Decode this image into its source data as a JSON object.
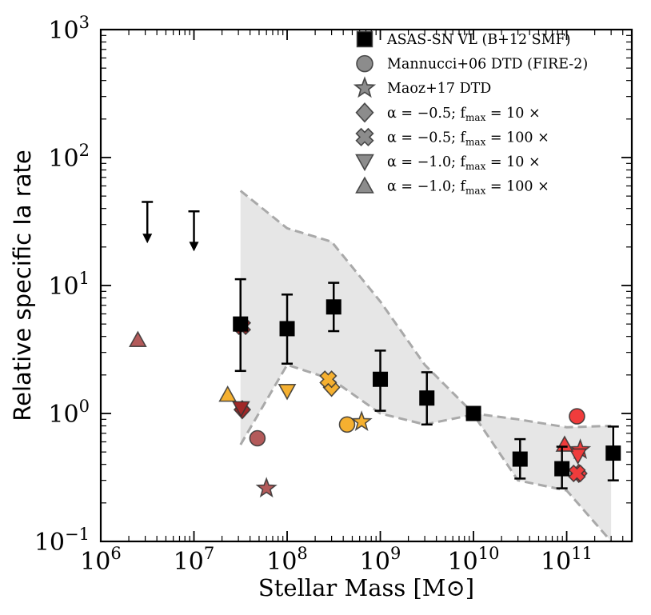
{
  "chart_data": {
    "type": "scatter",
    "title": "",
    "xlabel": "Stellar Mass [M⊙]",
    "ylabel": "Relative specific Ia rate",
    "xscale": "log",
    "yscale": "log",
    "xlim": [
      1000000,
      500000000000
    ],
    "ylim": [
      0.1,
      1000
    ],
    "xticks": [
      {
        "value": 1000000,
        "base": "10",
        "exp": "6"
      },
      {
        "value": 10000000,
        "base": "10",
        "exp": "7"
      },
      {
        "value": 100000000,
        "base": "10",
        "exp": "8"
      },
      {
        "value": 1000000000,
        "base": "10",
        "exp": "9"
      },
      {
        "value": 10000000000,
        "base": "10",
        "exp": "10"
      },
      {
        "value": 100000000000,
        "base": "10",
        "exp": "11"
      }
    ],
    "yticks": [
      {
        "value": 0.1,
        "base": "10",
        "exp": "−1"
      },
      {
        "value": 1,
        "base": "10",
        "exp": "0"
      },
      {
        "value": 10,
        "base": "10",
        "exp": "1"
      },
      {
        "value": 100,
        "base": "10",
        "exp": "2"
      },
      {
        "value": 1000,
        "base": "10",
        "exp": "3"
      }
    ],
    "colors": {
      "asassn": "#000000",
      "band_fill": "#e6e6e6",
      "band_edge": "#a9a9a9",
      "low": "#b35a5a",
      "low_dark": "#a02828",
      "mid": "#f5b030",
      "high": "#f03c3c",
      "legend": "#8c8c8c"
    },
    "legend": {
      "location": "top-right",
      "entries": [
        {
          "marker": "square",
          "label": "ASAS-SN VL (B+12 SMF)"
        },
        {
          "marker": "circle",
          "label": "Mannucci+06 DTD (FIRE-2)"
        },
        {
          "marker": "star",
          "label": "Maoz+17 DTD"
        },
        {
          "marker": "diamond",
          "label": "α = −0.5; f",
          "sub": "max",
          "tail": " = 10 ×"
        },
        {
          "marker": "x",
          "label": "α = −0.5; f",
          "sub": "max",
          "tail": " = 100 ×"
        },
        {
          "marker": "triangle-down",
          "label": "α = −1.0; f",
          "sub": "max",
          "tail": " = 10 ×"
        },
        {
          "marker": "triangle-up",
          "label": "α = −1.0; f",
          "sub": "max",
          "tail": " = 100 ×"
        }
      ]
    },
    "band": {
      "upper": [
        [
          31600000,
          55
        ],
        [
          100000000,
          28
        ],
        [
          300000000,
          22
        ],
        [
          1000000000,
          7.5
        ],
        [
          3000000000,
          2.4
        ],
        [
          10000000000,
          1.0
        ],
        [
          30000000000,
          0.9
        ],
        [
          100000000000,
          0.78
        ],
        [
          300000000000,
          0.8
        ]
      ],
      "lower": [
        [
          31600000,
          0.57
        ],
        [
          100000000,
          2.4
        ],
        [
          300000000,
          1.85
        ],
        [
          1000000000,
          1.0
        ],
        [
          3000000000,
          0.82
        ],
        [
          10000000000,
          0.98
        ],
        [
          30000000000,
          0.3
        ],
        [
          100000000000,
          0.25
        ],
        [
          300000000000,
          0.1
        ]
      ]
    },
    "asassn": {
      "points": [
        {
          "x": 31600000,
          "y": 5.0,
          "ylo": 2.15,
          "yhi": 11.2
        },
        {
          "x": 100000000,
          "y": 4.6,
          "ylo": 2.45,
          "yhi": 8.5
        },
        {
          "x": 316000000,
          "y": 6.8,
          "ylo": 4.4,
          "yhi": 10.5
        },
        {
          "x": 1000000000,
          "y": 1.85,
          "ylo": 1.05,
          "yhi": 3.1
        },
        {
          "x": 3160000000,
          "y": 1.32,
          "ylo": 0.82,
          "yhi": 2.1
        },
        {
          "x": 10000000000,
          "y": 1.0,
          "ylo": 1.0,
          "yhi": 1.0
        },
        {
          "x": 31600000000,
          "y": 0.44,
          "ylo": 0.31,
          "yhi": 0.63
        },
        {
          "x": 89000000000,
          "y": 0.37,
          "ylo": 0.26,
          "yhi": 0.55
        },
        {
          "x": 316000000000,
          "y": 0.49,
          "ylo": 0.3,
          "yhi": 0.79
        }
      ],
      "upper_limits": [
        {
          "x": 3160000,
          "ytop": 45,
          "ybottom": 22
        },
        {
          "x": 10000000,
          "ytop": 38,
          "ybottom": 19
        }
      ]
    },
    "model_points": [
      {
        "series": "Mannucci+06 DTD (FIRE-2)",
        "marker": "circle",
        "color": "low",
        "x": 48000000,
        "y": 0.64
      },
      {
        "series": "Mannucci+06 DTD (FIRE-2)",
        "marker": "circle",
        "color": "mid",
        "x": 440000000,
        "y": 0.82
      },
      {
        "series": "Mannucci+06 DTD (FIRE-2)",
        "marker": "circle",
        "color": "high",
        "x": 129000000000,
        "y": 0.95
      },
      {
        "series": "Maoz+17 DTD",
        "marker": "star",
        "color": "low",
        "x": 60000000,
        "y": 0.26
      },
      {
        "series": "Maoz+17 DTD",
        "marker": "star",
        "color": "mid",
        "x": 630000000,
        "y": 0.86
      },
      {
        "series": "Maoz+17 DTD",
        "marker": "star",
        "color": "high",
        "x": 140000000000,
        "y": 0.52
      },
      {
        "series": "α=-0.5; fmax=10x",
        "marker": "diamond",
        "color": "low_dark",
        "x": 33000000,
        "y": 1.07
      },
      {
        "series": "α=-0.5; fmax=10x",
        "marker": "diamond",
        "color": "mid",
        "x": 300000000,
        "y": 1.6
      },
      {
        "series": "α=-0.5; fmax=10x",
        "marker": "diamond",
        "color": "high",
        "x": 135000000000,
        "y": 0.34
      },
      {
        "series": "α=-0.5; fmax=100x",
        "marker": "x",
        "color": "low_dark",
        "x": 33000000,
        "y": 4.8
      },
      {
        "series": "α=-0.5; fmax=100x",
        "marker": "x",
        "color": "mid",
        "x": 276000000,
        "y": 1.85
      },
      {
        "series": "α=-0.5; fmax=100x",
        "marker": "x",
        "color": "high",
        "x": 129000000000,
        "y": 0.34
      },
      {
        "series": "α=-1.0; fmax=10x",
        "marker": "triangle-down",
        "color": "low_dark",
        "x": 32000000,
        "y": 1.1
      },
      {
        "series": "α=-1.0; fmax=10x",
        "marker": "triangle-down",
        "color": "mid",
        "x": 100000000,
        "y": 1.5
      },
      {
        "series": "α=-1.0; fmax=10x",
        "marker": "triangle-down",
        "color": "high",
        "x": 132000000000,
        "y": 0.47
      },
      {
        "series": "α=-1.0; fmax=100x",
        "marker": "triangle-up",
        "color": "low",
        "x": 2500000,
        "y": 3.75
      },
      {
        "series": "α=-1.0; fmax=100x",
        "marker": "triangle-up",
        "color": "mid",
        "x": 23000000,
        "y": 1.4
      },
      {
        "series": "α=-1.0; fmax=100x",
        "marker": "triangle-up",
        "color": "high",
        "x": 95000000000,
        "y": 0.57
      }
    ]
  }
}
